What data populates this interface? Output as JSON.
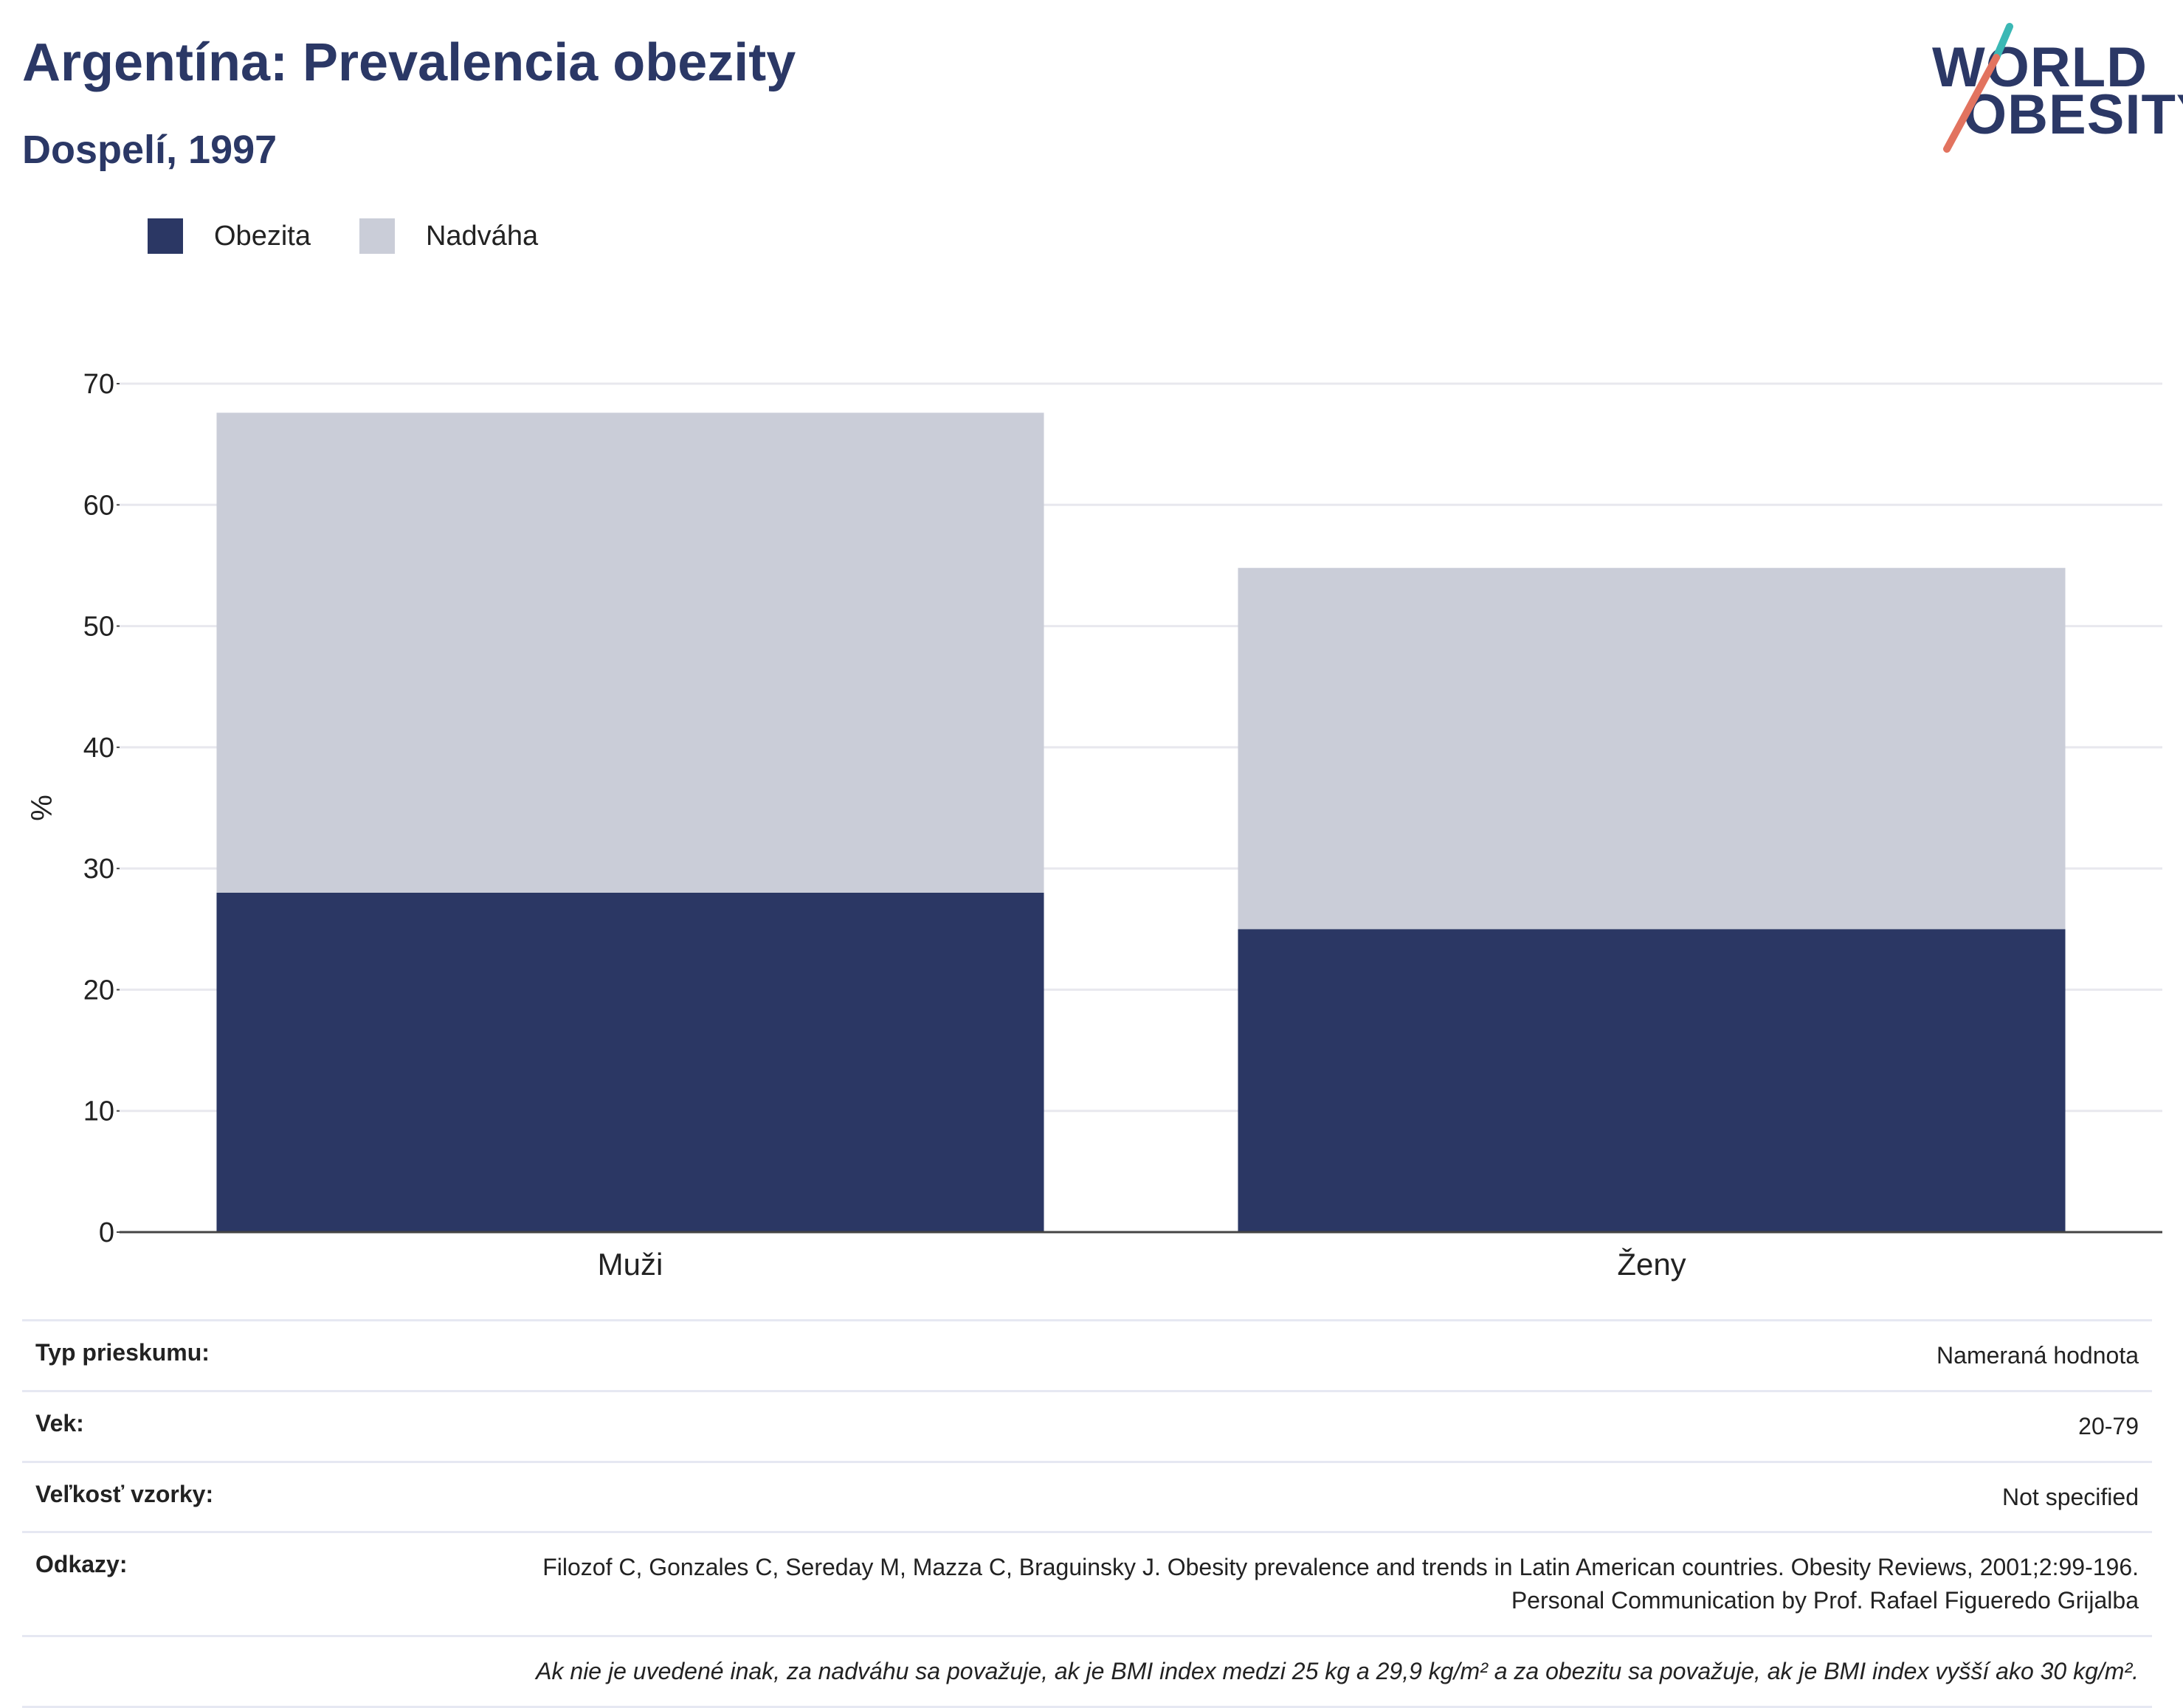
{
  "header": {
    "title": "Argentína: Prevalencia obezity",
    "subtitle": "Dospelí, 1997"
  },
  "logo": {
    "line1": "WORLD",
    "line2": "OBESITY"
  },
  "colors": {
    "obesity": "#2b3764",
    "overweight": "#cacdd8",
    "text": "#2b3866",
    "grid": "#e8e8ee"
  },
  "chart_data": {
    "type": "bar",
    "stacked": true,
    "categories": [
      "Muži",
      "Ženy"
    ],
    "series": [
      {
        "name": "Obezita",
        "values": [
          28,
          25
        ],
        "color": "#2b3764"
      },
      {
        "name": "Nadváha",
        "values": [
          39.6,
          29.8
        ],
        "color": "#cacdd8"
      }
    ],
    "ylabel": "%",
    "ylim": [
      0,
      70
    ],
    "yticks": [
      "0",
      "10",
      "20",
      "30",
      "40",
      "50",
      "60",
      "70"
    ],
    "grid": true,
    "legend_position": "top-left"
  },
  "info": {
    "rows": [
      {
        "key": "Typ prieskumu:",
        "value": "Nameraná hodnota"
      },
      {
        "key": "Vek:",
        "value": "20-79"
      },
      {
        "key": "Veľkosť vzorky:",
        "value": "Not specified"
      },
      {
        "key": "Odkazy:",
        "value": "Filozof C, Gonzales C, Sereday M, Mazza C, Braguinsky J. Obesity prevalence and trends in Latin American countries. Obesity Reviews, 2001;2:99-196. Personal Communication by Prof. Rafael Figueredo Grijalba"
      }
    ],
    "note": "Ak nie je uvedené inak, za nadváhu sa považuje, ak je BMI index medzi 25 kg a 29,9 kg/m² a za obezitu sa považuje, ak je BMI index vyšší ako 30 kg/m²."
  }
}
